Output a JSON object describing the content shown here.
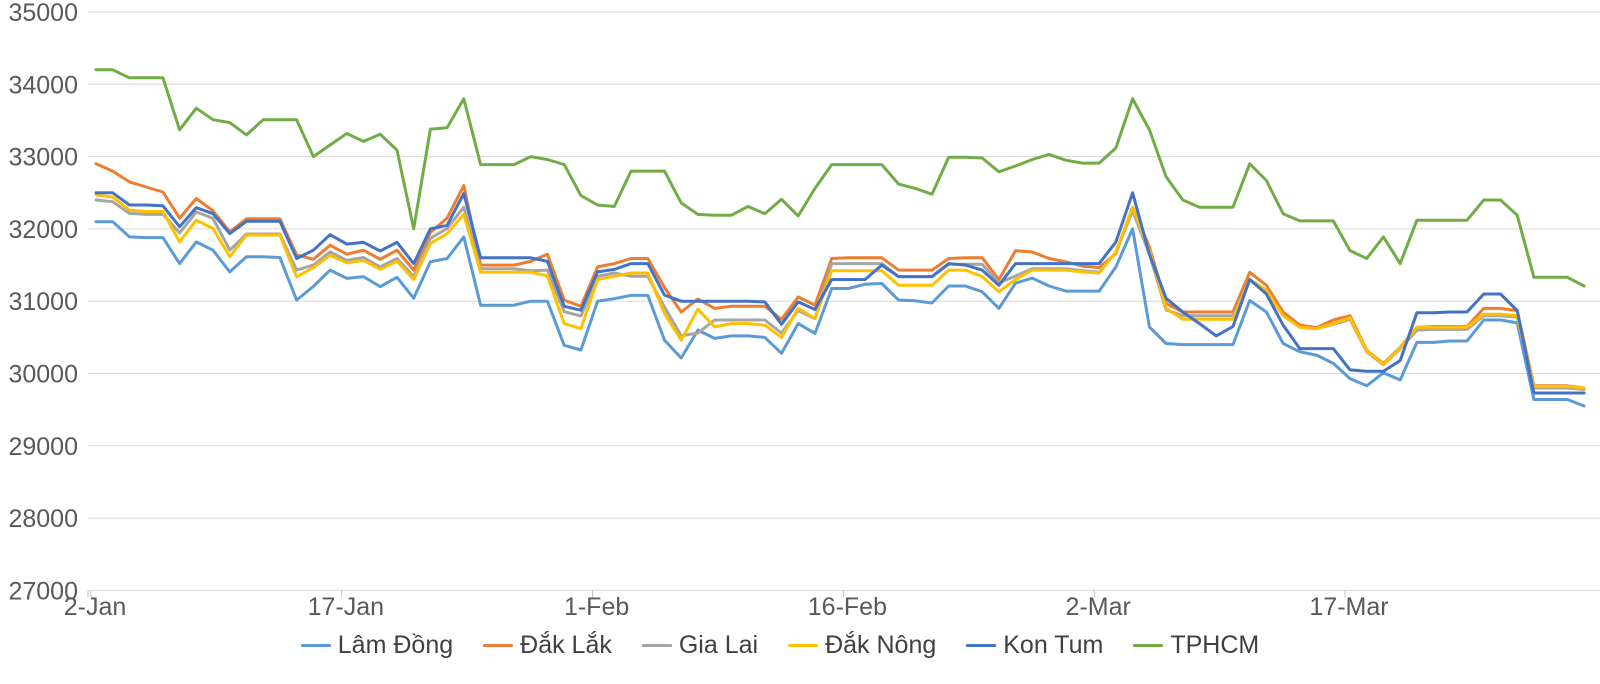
{
  "chart_data": {
    "type": "line",
    "title": "",
    "xlabel": "",
    "ylabel": "",
    "grid": true,
    "legend_position": "bottom",
    "background_color": "#FFFFFF",
    "gridline_color": "#D9D9D9",
    "axis_tick_color": "#BFBFBF",
    "axis_label_color": "#595959",
    "legend_text_color": "#404040",
    "y_axis": {
      "min": 27000,
      "max": 35000,
      "step": 1000,
      "tick_labels": [
        "35000",
        "34000",
        "33000",
        "32000",
        "31000",
        "30000",
        "29000",
        "28000",
        "27000"
      ]
    },
    "x_axis": {
      "point_count": 90,
      "tick_labels": [
        {
          "index": 0,
          "label": "2-Jan"
        },
        {
          "index": 15,
          "label": "17-Jan"
        },
        {
          "index": 30,
          "label": "1-Feb"
        },
        {
          "index": 45,
          "label": "16-Feb"
        },
        {
          "index": 60,
          "label": "2-Mar"
        },
        {
          "index": 75,
          "label": "17-Mar"
        }
      ]
    },
    "series": [
      {
        "name": "Lâm Đồng",
        "color": "#5B9BD5",
        "values": [
          32100,
          32100,
          31890,
          31880,
          31880,
          31520,
          31820,
          31705,
          31405,
          31615,
          31615,
          31605,
          31015,
          31205,
          31430,
          31315,
          31340,
          31200,
          31330,
          31040,
          31545,
          31590,
          31890,
          30945,
          30945,
          30945,
          31000,
          31000,
          30390,
          30325,
          31000,
          31035,
          31080,
          31080,
          30460,
          30215,
          30600,
          30485,
          30520,
          30520,
          30500,
          30280,
          30690,
          30555,
          31175,
          31175,
          31235,
          31245,
          31015,
          31005,
          30975,
          31210,
          31210,
          31130,
          30900,
          31250,
          31320,
          31210,
          31140,
          31140,
          31140,
          31475,
          32000,
          30645,
          30415,
          30400,
          30400,
          30400,
          30400,
          31010,
          30850,
          30415,
          30300,
          30255,
          30140,
          29930,
          29830,
          30010,
          29910,
          30430,
          30430,
          30450,
          30450,
          30740,
          30740,
          30700,
          29640,
          29640,
          29640,
          29550
        ]
      },
      {
        "name": "Đắk Lắk",
        "color": "#ED7D31",
        "values": [
          32900,
          32800,
          32650,
          32580,
          32510,
          32150,
          32420,
          32250,
          31960,
          32140,
          32140,
          32140,
          31640,
          31580,
          31775,
          31650,
          31705,
          31580,
          31705,
          31430,
          31950,
          32150,
          32600,
          31500,
          31500,
          31500,
          31550,
          31650,
          31015,
          30930,
          31475,
          31520,
          31590,
          31590,
          31190,
          30850,
          31030,
          30900,
          30930,
          30930,
          30930,
          30750,
          31060,
          30945,
          31590,
          31600,
          31600,
          31600,
          31430,
          31430,
          31430,
          31590,
          31600,
          31600,
          31300,
          31700,
          31680,
          31590,
          31545,
          31485,
          31465,
          31660,
          32300,
          31750,
          30970,
          30850,
          30850,
          30850,
          30850,
          31400,
          31220,
          30850,
          30670,
          30635,
          30740,
          30800,
          30320,
          30140,
          30360,
          30640,
          30650,
          30650,
          30650,
          30900,
          30900,
          30870,
          29830,
          29830,
          29830,
          29800
        ]
      },
      {
        "name": "Gia Lai",
        "color": "#A5A5A5",
        "values": [
          32400,
          32375,
          32215,
          32200,
          32200,
          31945,
          32235,
          32145,
          31705,
          31930,
          31930,
          31930,
          31430,
          31500,
          31680,
          31565,
          31605,
          31475,
          31590,
          31340,
          31870,
          32005,
          32300,
          31450,
          31450,
          31450,
          31420,
          31430,
          30855,
          30795,
          31345,
          31390,
          31345,
          31345,
          30920,
          30520,
          30560,
          30740,
          30740,
          30740,
          30740,
          30560,
          30870,
          30760,
          31520,
          31520,
          31520,
          31520,
          31340,
          31340,
          31340,
          31510,
          31510,
          31510,
          31250,
          31350,
          31450,
          31450,
          31450,
          31420,
          31400,
          31680,
          32250,
          31650,
          30880,
          30800,
          30800,
          30800,
          30800,
          31300,
          31150,
          30800,
          30640,
          30620,
          30680,
          30750,
          30300,
          30120,
          30340,
          30600,
          30610,
          30610,
          30610,
          30800,
          30800,
          30780,
          29800,
          29800,
          29800,
          29780
        ]
      },
      {
        "name": "Đắk Nông",
        "color": "#FFC000",
        "values": [
          32470,
          32440,
          32260,
          32240,
          32240,
          31820,
          32120,
          32005,
          31615,
          31915,
          31915,
          31915,
          31335,
          31465,
          31635,
          31530,
          31565,
          31440,
          31555,
          31300,
          31800,
          31935,
          32200,
          31400,
          31400,
          31400,
          31400,
          31350,
          30690,
          30620,
          31300,
          31345,
          31390,
          31390,
          30830,
          30460,
          30890,
          30645,
          30690,
          30690,
          30670,
          30500,
          30900,
          30760,
          31420,
          31420,
          31420,
          31420,
          31220,
          31220,
          31220,
          31430,
          31430,
          31340,
          31130,
          31300,
          31430,
          31430,
          31430,
          31405,
          31390,
          31680,
          32300,
          31700,
          30900,
          30750,
          30750,
          30750,
          30750,
          31300,
          31150,
          30800,
          30640,
          30620,
          30690,
          30770,
          30310,
          30130,
          30350,
          30640,
          30640,
          30640,
          30640,
          30820,
          30820,
          30800,
          29820,
          29820,
          29820,
          29800
        ]
      },
      {
        "name": "Kon Tum",
        "color": "#4472C4",
        "values": [
          32500,
          32500,
          32330,
          32330,
          32320,
          32030,
          32295,
          32210,
          31935,
          32105,
          32105,
          32105,
          31590,
          31705,
          31920,
          31790,
          31815,
          31695,
          31815,
          31520,
          32000,
          32050,
          32490,
          31600,
          31600,
          31600,
          31600,
          31550,
          30930,
          30875,
          31405,
          31440,
          31520,
          31520,
          31085,
          31000,
          31000,
          31000,
          31000,
          31000,
          30990,
          30680,
          30990,
          30885,
          31300,
          31300,
          31300,
          31500,
          31340,
          31340,
          31340,
          31520,
          31500,
          31430,
          31220,
          31520,
          31520,
          31520,
          31520,
          31520,
          31520,
          31820,
          32500,
          31650,
          31040,
          30850,
          30690,
          30520,
          30650,
          31300,
          31100,
          30670,
          30345,
          30345,
          30345,
          30050,
          30030,
          30030,
          30180,
          30840,
          30840,
          30850,
          30850,
          31100,
          31100,
          30870,
          29730,
          29730,
          29730,
          29730
        ]
      },
      {
        "name": "TPHCM",
        "color": "#70AD47",
        "values": [
          34200,
          34200,
          34090,
          34090,
          34090,
          33370,
          33670,
          33510,
          33470,
          33300,
          33510,
          33510,
          33510,
          33000,
          33160,
          33320,
          33210,
          33310,
          33090,
          32000,
          33380,
          33400,
          33800,
          32890,
          32890,
          32890,
          33000,
          32960,
          32890,
          32460,
          32330,
          32310,
          32800,
          32800,
          32800,
          32360,
          32200,
          32190,
          32190,
          32310,
          32210,
          32410,
          32180,
          32560,
          32890,
          32890,
          32890,
          32890,
          32620,
          32560,
          32480,
          32990,
          32990,
          32980,
          32790,
          32870,
          32960,
          33030,
          32950,
          32910,
          32910,
          33120,
          33800,
          33370,
          32720,
          32400,
          32300,
          32300,
          32300,
          32900,
          32670,
          32210,
          32110,
          32110,
          32110,
          31700,
          31590,
          31890,
          31520,
          32120,
          32120,
          32120,
          32120,
          32400,
          32400,
          32190,
          31330,
          31330,
          31330,
          31210
        ]
      }
    ]
  }
}
